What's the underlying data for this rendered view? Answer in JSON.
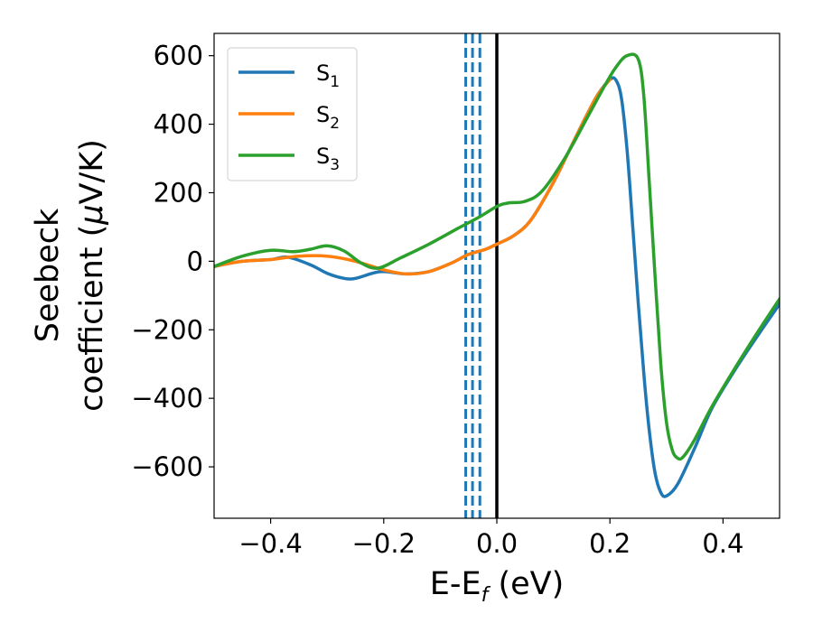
{
  "chart_data": {
    "type": "line",
    "xlabel": {
      "base": "E-E",
      "sub": "f",
      "tail": " (eV)"
    },
    "ylabel": {
      "line1": "Seebeck",
      "line2": "coefficient  (",
      "mu": "μ",
      "line2_tail": "V/K)"
    },
    "xlim": [
      -0.5,
      0.5
    ],
    "ylim": [
      -750,
      665
    ],
    "x_ticks": [
      -0.4,
      -0.2,
      0.0,
      0.2,
      0.4
    ],
    "x_tick_labels": [
      "−0.4",
      "−0.2",
      "0.0",
      "0.2",
      "0.4"
    ],
    "y_ticks": [
      600,
      400,
      200,
      0,
      -200,
      -400,
      -600
    ],
    "y_tick_labels": [
      "600",
      "400",
      "200",
      "0",
      "−200",
      "−400",
      "−600"
    ],
    "grid": false,
    "legend_position": "top-left",
    "legend": [
      {
        "base": "S",
        "sub": "1",
        "color": "#1f77b4"
      },
      {
        "base": "S",
        "sub": "2",
        "color": "#ff7f0e"
      },
      {
        "base": "S",
        "sub": "3",
        "color": "#2ca02c"
      }
    ],
    "vertical_lines": [
      {
        "x": 0.0,
        "style": "solid",
        "color": "#000000"
      },
      {
        "x": -0.055,
        "style": "dashed",
        "color": "#1f77b4"
      },
      {
        "x": -0.043,
        "style": "dashed",
        "color": "#1f77b4"
      },
      {
        "x": -0.03,
        "style": "dashed",
        "color": "#1f77b4"
      }
    ],
    "series": [
      {
        "color": "#1f77b4",
        "points": [
          [
            -0.5,
            -15
          ],
          [
            -0.45,
            0
          ],
          [
            -0.4,
            5
          ],
          [
            -0.37,
            12
          ],
          [
            -0.33,
            -10
          ],
          [
            -0.3,
            -35
          ],
          [
            -0.27,
            -50
          ],
          [
            -0.25,
            -50
          ],
          [
            -0.22,
            -35
          ],
          [
            -0.2,
            -30
          ],
          [
            -0.16,
            -37
          ],
          [
            -0.12,
            -30
          ],
          [
            -0.08,
            -5
          ],
          [
            -0.05,
            20
          ],
          [
            -0.02,
            35
          ],
          [
            0.0,
            50
          ],
          [
            0.03,
            75
          ],
          [
            0.06,
            120
          ],
          [
            0.1,
            230
          ],
          [
            0.13,
            330
          ],
          [
            0.16,
            430
          ],
          [
            0.18,
            490
          ],
          [
            0.2,
            530
          ],
          [
            0.21,
            530
          ],
          [
            0.22,
            480
          ],
          [
            0.23,
            330
          ],
          [
            0.24,
            110
          ],
          [
            0.25,
            -120
          ],
          [
            0.26,
            -330
          ],
          [
            0.27,
            -500
          ],
          [
            0.28,
            -620
          ],
          [
            0.29,
            -675
          ],
          [
            0.3,
            -685
          ],
          [
            0.32,
            -650
          ],
          [
            0.35,
            -545
          ],
          [
            0.38,
            -430
          ],
          [
            0.42,
            -320
          ],
          [
            0.46,
            -220
          ],
          [
            0.5,
            -125
          ]
        ]
      },
      {
        "color": "#ff7f0e",
        "points": [
          [
            -0.5,
            -15
          ],
          [
            -0.45,
            0
          ],
          [
            -0.4,
            5
          ],
          [
            -0.35,
            15
          ],
          [
            -0.3,
            15
          ],
          [
            -0.25,
            0
          ],
          [
            -0.2,
            -25
          ],
          [
            -0.16,
            -37
          ],
          [
            -0.12,
            -30
          ],
          [
            -0.08,
            -5
          ],
          [
            -0.05,
            20
          ],
          [
            -0.02,
            35
          ],
          [
            0.0,
            50
          ],
          [
            0.03,
            75
          ],
          [
            0.06,
            120
          ],
          [
            0.1,
            230
          ],
          [
            0.13,
            330
          ],
          [
            0.16,
            430
          ],
          [
            0.18,
            490
          ],
          [
            0.2,
            530
          ]
        ]
      },
      {
        "color": "#2ca02c",
        "points": [
          [
            -0.5,
            -15
          ],
          [
            -0.45,
            15
          ],
          [
            -0.4,
            32
          ],
          [
            -0.36,
            28
          ],
          [
            -0.33,
            35
          ],
          [
            -0.3,
            45
          ],
          [
            -0.27,
            30
          ],
          [
            -0.24,
            -5
          ],
          [
            -0.21,
            -20
          ],
          [
            -0.17,
            10
          ],
          [
            -0.12,
            50
          ],
          [
            -0.07,
            95
          ],
          [
            -0.03,
            130
          ],
          [
            0.0,
            160
          ],
          [
            0.02,
            170
          ],
          [
            0.05,
            175
          ],
          [
            0.08,
            205
          ],
          [
            0.12,
            300
          ],
          [
            0.16,
            420
          ],
          [
            0.19,
            510
          ],
          [
            0.21,
            565
          ],
          [
            0.23,
            600
          ],
          [
            0.25,
            590
          ],
          [
            0.26,
            480
          ],
          [
            0.27,
            220
          ],
          [
            0.28,
            -50
          ],
          [
            0.29,
            -300
          ],
          [
            0.3,
            -470
          ],
          [
            0.31,
            -550
          ],
          [
            0.32,
            -575
          ],
          [
            0.33,
            -570
          ],
          [
            0.35,
            -520
          ],
          [
            0.38,
            -425
          ],
          [
            0.42,
            -315
          ],
          [
            0.46,
            -210
          ],
          [
            0.5,
            -110
          ]
        ]
      }
    ]
  }
}
